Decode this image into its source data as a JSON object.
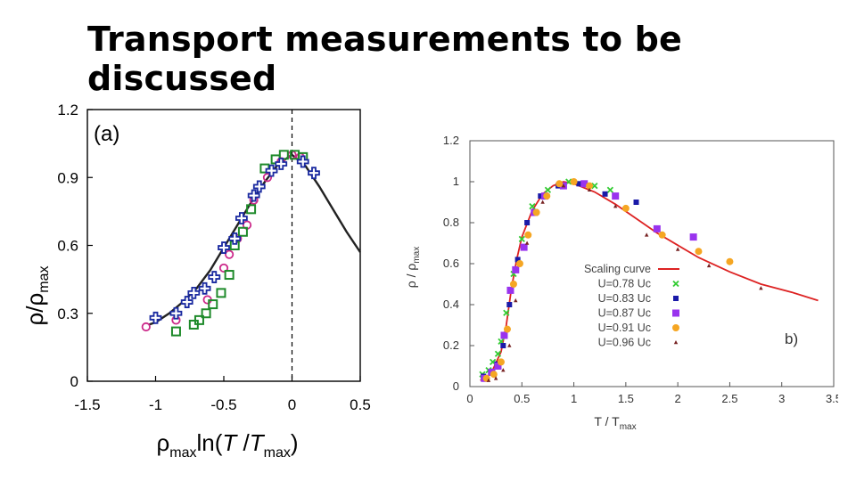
{
  "slide": {
    "title": "Transport measurements to be discussed"
  },
  "chart_data": [
    {
      "type": "scatter",
      "panel_label": "(a)",
      "xlabel": {
        "rho": "ρ",
        "max_sub": "max",
        "ln": "ln(",
        "T": "T",
        "slash": " /",
        "T2": "T",
        "sub2": "max",
        "close": ")"
      },
      "ylabel": {
        "rho": "ρ",
        "slash": "/",
        "rho2": "ρ",
        "sub": "max"
      },
      "xlim": [
        -1.5,
        0.5
      ],
      "ylim": [
        0,
        1.2
      ],
      "x_tick_labels": [
        "-1.5",
        "-1",
        "-0.5",
        "0",
        "0.5"
      ],
      "y_tick_labels": [
        "0",
        "0.3",
        "0.6",
        "0.9",
        "1.2"
      ],
      "x_ticks": [
        -1.5,
        -1,
        -0.5,
        0,
        0.5
      ],
      "y_ticks": [
        0,
        0.3,
        0.6,
        0.9,
        1.2
      ],
      "dashed_vline_x": 0,
      "curve": {
        "name": "fit",
        "color": "#222222",
        "x": [
          -1.05,
          -1.0,
          -0.9,
          -0.8,
          -0.7,
          -0.6,
          -0.5,
          -0.4,
          -0.3,
          -0.2,
          -0.1,
          0,
          0.1,
          0.2,
          0.3,
          0.4,
          0.5
        ],
        "y": [
          0.25,
          0.26,
          0.3,
          0.35,
          0.41,
          0.49,
          0.59,
          0.69,
          0.79,
          0.88,
          0.96,
          1.0,
          0.95,
          0.86,
          0.76,
          0.66,
          0.57
        ]
      },
      "series": [
        {
          "name": "open-circles",
          "marker": "circle",
          "color": "#cc2a8a",
          "x": [
            -1.07,
            -0.85,
            -0.62,
            -0.5,
            -0.46,
            -0.4,
            -0.33,
            -0.28,
            -0.18,
            -0.08,
            0.0,
            0.06
          ],
          "y": [
            0.24,
            0.27,
            0.36,
            0.5,
            0.56,
            0.63,
            0.69,
            0.8,
            0.9,
            0.97,
            1.0,
            0.99
          ]
        },
        {
          "name": "open-squares",
          "marker": "square",
          "color": "#1e8a2a",
          "x": [
            -0.85,
            -0.72,
            -0.68,
            -0.63,
            -0.58,
            -0.52,
            -0.46,
            -0.42,
            -0.36,
            -0.3,
            -0.2,
            -0.12,
            -0.06,
            0.02,
            0.08
          ],
          "y": [
            0.22,
            0.25,
            0.27,
            0.3,
            0.34,
            0.39,
            0.47,
            0.6,
            0.66,
            0.76,
            0.94,
            0.98,
            1.0,
            1.0,
            0.99
          ]
        },
        {
          "name": "open-crosses",
          "marker": "plus",
          "color": "#1a2aa0",
          "x": [
            -1.0,
            -0.85,
            -0.77,
            -0.72,
            -0.64,
            -0.57,
            -0.5,
            -0.42,
            -0.37,
            -0.28,
            -0.24,
            -0.15,
            -0.08,
            0.08,
            0.16
          ],
          "y": [
            0.28,
            0.3,
            0.35,
            0.39,
            0.41,
            0.46,
            0.59,
            0.63,
            0.72,
            0.82,
            0.86,
            0.93,
            0.96,
            0.97,
            0.92
          ]
        }
      ]
    },
    {
      "type": "scatter",
      "panel_label": "b)",
      "xlabel": {
        "T": "T / T",
        "sub": "max"
      },
      "ylabel": {
        "rho": "ρ / ρ",
        "sub": "max"
      },
      "xlim": [
        0,
        3.5
      ],
      "ylim": [
        0,
        1.2
      ],
      "x_tick_labels": [
        "0",
        "0.5",
        "1",
        "1.5",
        "2",
        "2.5",
        "3",
        "3.5"
      ],
      "y_tick_labels": [
        "0",
        "0.2",
        "0.4",
        "0.6",
        "0.8",
        "1",
        "1.2"
      ],
      "x_ticks": [
        0,
        0.5,
        1,
        1.5,
        2,
        2.5,
        3,
        3.5
      ],
      "y_ticks": [
        0,
        0.2,
        0.4,
        0.6,
        0.8,
        1,
        1.2
      ],
      "legend_position": "center-right",
      "curve": {
        "name": "Scaling curve",
        "color": "#dd2222",
        "x": [
          0.1,
          0.2,
          0.3,
          0.35,
          0.4,
          0.45,
          0.5,
          0.6,
          0.7,
          0.8,
          0.9,
          1.0,
          1.2,
          1.4,
          1.6,
          1.8,
          2.0,
          2.2,
          2.5,
          2.8,
          3.1,
          3.35
        ],
        "y": [
          0.03,
          0.06,
          0.17,
          0.3,
          0.48,
          0.62,
          0.73,
          0.86,
          0.94,
          0.98,
          1.0,
          0.99,
          0.95,
          0.89,
          0.82,
          0.75,
          0.69,
          0.63,
          0.56,
          0.5,
          0.46,
          0.42
        ]
      },
      "series": [
        {
          "name": "U=0.78 Uc",
          "marker": "x",
          "color": "#33cc33",
          "x": [
            0.12,
            0.18,
            0.22,
            0.27,
            0.3,
            0.35,
            0.42,
            0.5,
            0.6,
            0.75,
            0.95,
            1.2,
            1.35
          ],
          "y": [
            0.06,
            0.08,
            0.12,
            0.16,
            0.22,
            0.36,
            0.55,
            0.72,
            0.88,
            0.96,
            1.0,
            0.98,
            0.96
          ]
        },
        {
          "name": "U=0.83 Uc",
          "marker": "square-small",
          "color": "#1a1aa8",
          "x": [
            0.13,
            0.2,
            0.26,
            0.32,
            0.38,
            0.46,
            0.55,
            0.68,
            0.85,
            1.05,
            1.3,
            1.6
          ],
          "y": [
            0.05,
            0.07,
            0.11,
            0.2,
            0.4,
            0.62,
            0.8,
            0.93,
            0.98,
            0.99,
            0.94,
            0.9
          ]
        },
        {
          "name": "U=0.87 Uc",
          "marker": "square",
          "color": "#9933ee",
          "x": [
            0.14,
            0.21,
            0.27,
            0.33,
            0.39,
            0.44,
            0.52,
            0.62,
            0.72,
            0.9,
            1.1,
            1.4,
            1.8,
            2.15
          ],
          "y": [
            0.04,
            0.07,
            0.1,
            0.25,
            0.47,
            0.57,
            0.68,
            0.85,
            0.93,
            0.98,
            0.99,
            0.93,
            0.77,
            0.73
          ]
        },
        {
          "name": "U=0.91 Uc",
          "marker": "circle",
          "color": "#f5a623",
          "x": [
            0.16,
            0.23,
            0.3,
            0.36,
            0.42,
            0.48,
            0.56,
            0.64,
            0.74,
            0.86,
            1.0,
            1.15,
            1.5,
            1.85,
            2.2,
            2.5
          ],
          "y": [
            0.04,
            0.06,
            0.12,
            0.28,
            0.5,
            0.6,
            0.74,
            0.85,
            0.93,
            0.99,
            1.0,
            0.98,
            0.87,
            0.74,
            0.66,
            0.61
          ]
        },
        {
          "name": "U=0.96 Uc",
          "marker": "triangle",
          "color": "#772222",
          "x": [
            0.18,
            0.25,
            0.32,
            0.38,
            0.44,
            0.55,
            0.7,
            0.9,
            1.15,
            1.4,
            1.7,
            2.0,
            2.3,
            2.8
          ],
          "y": [
            0.03,
            0.04,
            0.08,
            0.2,
            0.42,
            0.7,
            0.9,
            0.98,
            0.96,
            0.88,
            0.74,
            0.67,
            0.59,
            0.48
          ]
        }
      ]
    }
  ]
}
